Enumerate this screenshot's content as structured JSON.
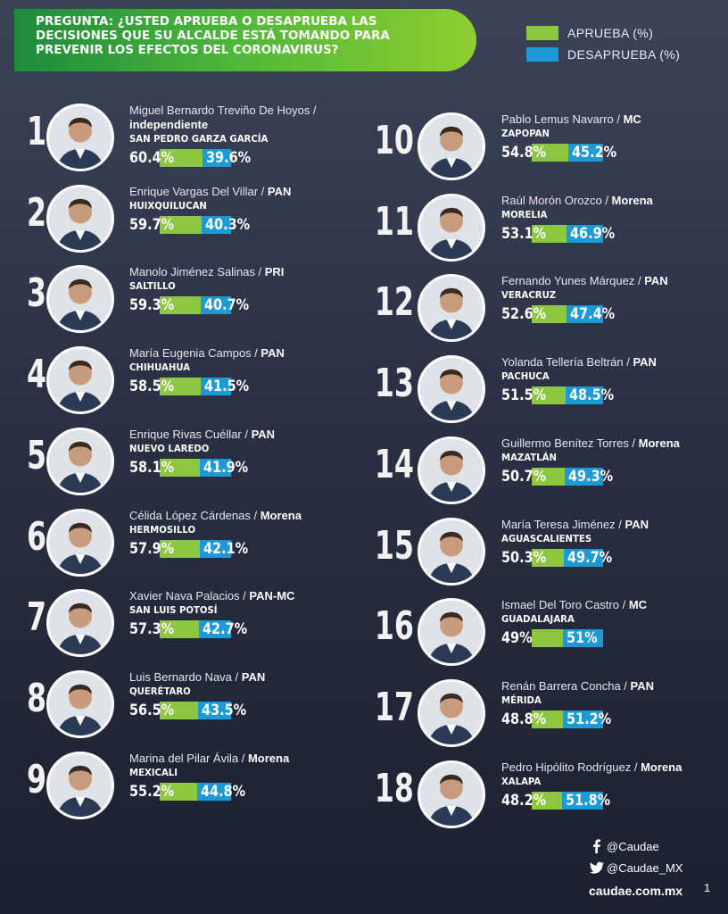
{
  "question": "PREGUNTA: ¿USTED APRUEBA O DESAPRUEBA LAS DECISIONES QUE SU ALCALDE ESTÁ TOMANDO PARA PREVENIR LOS EFECTOS DEL CORONAVIRUS?",
  "legend": [
    {
      "label": "APRUEBA (%)",
      "color": "#8dc63f"
    },
    {
      "label": "DESAPRUEBA (%)",
      "color": "#1b9ad6"
    }
  ],
  "chart_data": {
    "type": "bar",
    "title": "PREGUNTA: ¿USTED APRUEBA O DESAPRUEBA LAS DECISIONES QUE SU ALCALDE ESTÁ TOMANDO PARA PREVENIR LOS EFECTOS DEL CORONAVIRUS?",
    "series_names": [
      "APRUEBA (%)",
      "DESAPRUEBA (%)"
    ],
    "entries": [
      {
        "rank": "1",
        "name": "Miguel Bernardo Treviño De Hoyos /",
        "party": "independiente",
        "city": "SAN PEDRO GARZA GARCÍA",
        "approve": 60.4,
        "disapprove": 39.6,
        "approve_label": "60.4%",
        "disapprove_label": "39.6%"
      },
      {
        "rank": "2",
        "name": "Enrique Vargas Del Villar / ",
        "party": "PAN",
        "city": "HUIXQUILUCAN",
        "approve": 59.7,
        "disapprove": 40.3,
        "approve_label": "59.7%",
        "disapprove_label": "40.3%"
      },
      {
        "rank": "3",
        "name": "Manolo Jiménez Salinas / ",
        "party": "PRI",
        "city": "SALTILLO",
        "approve": 59.3,
        "disapprove": 40.7,
        "approve_label": "59.3%",
        "disapprove_label": "40.7%"
      },
      {
        "rank": "4",
        "name": "María Eugenia Campos / ",
        "party": "PAN",
        "city": "CHIHUAHUA",
        "approve": 58.5,
        "disapprove": 41.5,
        "approve_label": "58.5%",
        "disapprove_label": "41.5%"
      },
      {
        "rank": "5",
        "name": "Enrique Rivas Cuéllar / ",
        "party": "PAN",
        "city": "NUEVO LAREDO",
        "approve": 58.1,
        "disapprove": 41.9,
        "approve_label": "58.1%",
        "disapprove_label": "41.9%"
      },
      {
        "rank": "6",
        "name": "Célida López Cárdenas / ",
        "party": "Morena",
        "city": "HERMOSILLO",
        "approve": 57.9,
        "disapprove": 42.1,
        "approve_label": "57.9%",
        "disapprove_label": "42.1%"
      },
      {
        "rank": "7",
        "name": "Xavier Nava Palacios / ",
        "party": "PAN-MC",
        "city": "SAN LUIS POTOSÍ",
        "approve": 57.3,
        "disapprove": 42.7,
        "approve_label": "57.3%",
        "disapprove_label": "42.7%"
      },
      {
        "rank": "8",
        "name": "Luis Bernardo Nava / ",
        "party": "PAN",
        "city": "QUERÉTARO",
        "approve": 56.5,
        "disapprove": 43.5,
        "approve_label": "56.5%",
        "disapprove_label": "43.5%"
      },
      {
        "rank": "9",
        "name": "Marina del Pilar Ávila / ",
        "party": "Morena",
        "city": "MEXICALI",
        "approve": 55.2,
        "disapprove": 44.8,
        "approve_label": "55.2%",
        "disapprove_label": "44.8%"
      },
      {
        "rank": "10",
        "name": "Pablo Lemus Navarro / ",
        "party": "MC",
        "city": "ZAPOPAN",
        "approve": 54.8,
        "disapprove": 45.2,
        "approve_label": "54.8%",
        "disapprove_label": "45.2%"
      },
      {
        "rank": "11",
        "name": "Raúl Morón Orozco / ",
        "party": "Morena",
        "city": "MORELIA",
        "approve": 53.1,
        "disapprove": 46.9,
        "approve_label": "53.1%",
        "disapprove_label": "46.9%"
      },
      {
        "rank": "12",
        "name": "Fernando Yunes Márquez / ",
        "party": "PAN",
        "city": "VERACRUZ",
        "approve": 52.6,
        "disapprove": 47.4,
        "approve_label": "52.6%",
        "disapprove_label": "47.4%"
      },
      {
        "rank": "13",
        "name": "Yolanda Tellería Beltrán / ",
        "party": "PAN",
        "city": "PACHUCA",
        "approve": 51.5,
        "disapprove": 48.5,
        "approve_label": "51.5%",
        "disapprove_label": "48.5%"
      },
      {
        "rank": "14",
        "name": "Guillermo Benítez Torres / ",
        "party": "Morena",
        "city": "MAZATLÁN",
        "approve": 50.7,
        "disapprove": 49.3,
        "approve_label": "50.7%",
        "disapprove_label": "49.3%"
      },
      {
        "rank": "15",
        "name": "María Teresa Jiménez / ",
        "party": "PAN",
        "city": "AGUASCALIENTES",
        "approve": 50.3,
        "disapprove": 49.7,
        "approve_label": "50.3%",
        "disapprove_label": "49.7%"
      },
      {
        "rank": "16",
        "name": "Ismael Del Toro Castro / ",
        "party": "MC",
        "city": "GUADALAJARA",
        "approve": 49,
        "disapprove": 51,
        "approve_label": "49%",
        "disapprove_label": "51%"
      },
      {
        "rank": "17",
        "name": "Renán Barrera Concha / ",
        "party": "PAN",
        "city": "MÉRIDA",
        "approve": 48.8,
        "disapprove": 51.2,
        "approve_label": "48.8%",
        "disapprove_label": "51.2%"
      },
      {
        "rank": "18",
        "name": "Pedro Hipólito Rodríguez / ",
        "party": "Morena",
        "city": "XALAPA",
        "approve": 48.2,
        "disapprove": 51.8,
        "approve_label": "48.2%",
        "disapprove_label": "51.8%"
      }
    ]
  },
  "footer": {
    "facebook": "@Caudae",
    "twitter": "@Caudae_MX",
    "website": "caudae.com.mx",
    "page_number": "1"
  },
  "colors": {
    "approve": "#8dc63f",
    "disapprove": "#1b9ad6"
  }
}
